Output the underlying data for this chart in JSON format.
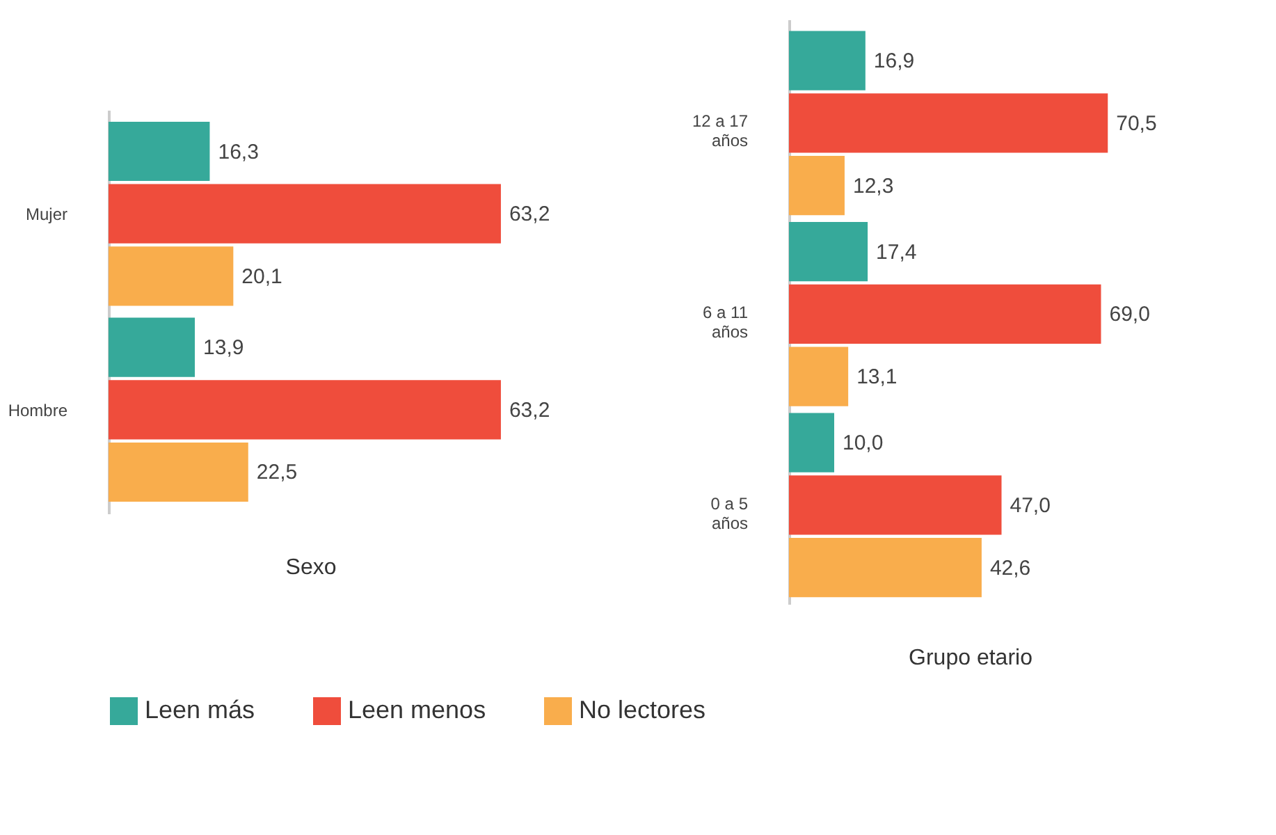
{
  "chart_data": [
    {
      "type": "bar",
      "orientation": "horizontal",
      "xlabel": "Sexo",
      "categories": [
        "Mujer",
        "Hombre"
      ],
      "legend": "bottom",
      "series": [
        {
          "name": "Leen más",
          "color": "#36a99a",
          "values": [
            16.3,
            13.9
          ],
          "value_labels": [
            "16,3",
            "13,9"
          ]
        },
        {
          "name": "Leen menos",
          "color": "#ef4d3c",
          "values": [
            63.2,
            63.2
          ],
          "value_labels": [
            "63,2",
            "63,2"
          ]
        },
        {
          "name": "No lectores",
          "color": "#f9ad4c",
          "values": [
            20.1,
            22.5
          ],
          "value_labels": [
            "20,1",
            "22,5"
          ]
        }
      ]
    },
    {
      "type": "bar",
      "orientation": "horizontal",
      "xlabel": "Grupo etario",
      "categories": [
        "12 a 17 años",
        "6 a 11 años",
        "0 a 5 años"
      ],
      "legend": "bottom",
      "series": [
        {
          "name": "Leen más",
          "color": "#36a99a",
          "values": [
            16.9,
            17.4,
            10.0
          ],
          "value_labels": [
            "16,9",
            "17,4",
            "10,0"
          ]
        },
        {
          "name": "Leen menos",
          "color": "#ef4d3c",
          "values": [
            70.5,
            69.0,
            47.0
          ],
          "value_labels": [
            "70,5",
            "69,0",
            "47,0"
          ]
        },
        {
          "name": "No lectores",
          "color": "#f9ad4c",
          "values": [
            12.3,
            13.1,
            42.6
          ],
          "value_labels": [
            "12,3",
            "13,1",
            "42,6"
          ]
        }
      ]
    }
  ]
}
